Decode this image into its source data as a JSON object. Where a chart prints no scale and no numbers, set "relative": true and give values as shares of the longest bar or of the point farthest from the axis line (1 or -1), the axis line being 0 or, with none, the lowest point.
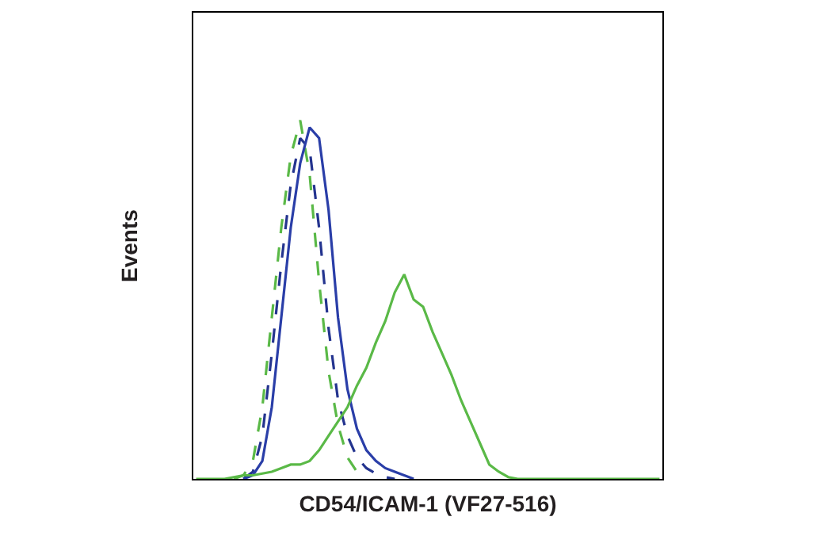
{
  "chart_data": {
    "type": "line",
    "relative": true,
    "xlabel": "CD54/ICAM-1 (VF27-516)",
    "ylabel": "Events",
    "categories": [
      null,
      null,
      null,
      null,
      null,
      null,
      null,
      null,
      null,
      null,
      null,
      null,
      null,
      null,
      null,
      null,
      null,
      null,
      null,
      null,
      null,
      null,
      null,
      null,
      null,
      null,
      null,
      null,
      null,
      null,
      null,
      null,
      null,
      null,
      null,
      null,
      null,
      null,
      null,
      null,
      null,
      null,
      null,
      null,
      null,
      null,
      null,
      null,
      null,
      null
    ],
    "series": [
      {
        "color": "#5ab947",
        "line_style": "dashed",
        "values": [
          null,
          null,
          null,
          null,
          0,
          0.01,
          0.05,
          0.2,
          0.45,
          0.7,
          0.9,
          1.0,
          0.85,
          0.55,
          0.3,
          0.15,
          0.06,
          0.02,
          0,
          null,
          null,
          null,
          null,
          null,
          null,
          null,
          null,
          null,
          null,
          null,
          null,
          null,
          null,
          null,
          null,
          null,
          null,
          null,
          null,
          null,
          null,
          null,
          null,
          null,
          null,
          null,
          null,
          null,
          null,
          null
        ]
      },
      {
        "color": "#24348f",
        "line_style": "dashed",
        "values": [
          null,
          null,
          null,
          null,
          null,
          0,
          0.02,
          0.12,
          0.35,
          0.6,
          0.82,
          0.95,
          0.92,
          0.7,
          0.42,
          0.22,
          0.12,
          0.06,
          0.03,
          0.015,
          0.005,
          0,
          null,
          null,
          null,
          null,
          null,
          null,
          null,
          null,
          null,
          null,
          null,
          null,
          null,
          null,
          null,
          null,
          null,
          null,
          null,
          null,
          null,
          null,
          null,
          null,
          null,
          null,
          null,
          null
        ]
      },
      {
        "color": "#2a3ea8",
        "line_style": "solid",
        "values": [
          null,
          null,
          null,
          null,
          null,
          0,
          0.01,
          0.05,
          0.2,
          0.45,
          0.7,
          0.88,
          0.98,
          0.95,
          0.75,
          0.45,
          0.25,
          0.14,
          0.08,
          0.05,
          0.03,
          0.02,
          0.01,
          0,
          null,
          null,
          null,
          null,
          null,
          null,
          null,
          null,
          null,
          null,
          null,
          null,
          null,
          null,
          null,
          null,
          null,
          null,
          null,
          null,
          null,
          null,
          null,
          null,
          null,
          null
        ]
      },
      {
        "color": "#5ab947",
        "line_style": "solid",
        "values": [
          0,
          0,
          0,
          0,
          0.005,
          0.01,
          0.01,
          0.015,
          0.02,
          0.03,
          0.04,
          0.04,
          0.05,
          0.08,
          0.12,
          0.16,
          0.2,
          0.26,
          0.31,
          0.38,
          0.44,
          0.52,
          0.57,
          0.5,
          0.48,
          0.41,
          0.35,
          0.29,
          0.22,
          0.16,
          0.1,
          0.04,
          0.02,
          0.005,
          0,
          0,
          0,
          0,
          0,
          0,
          0,
          0,
          0,
          0,
          0,
          0,
          0,
          0,
          0,
          0
        ]
      }
    ]
  }
}
